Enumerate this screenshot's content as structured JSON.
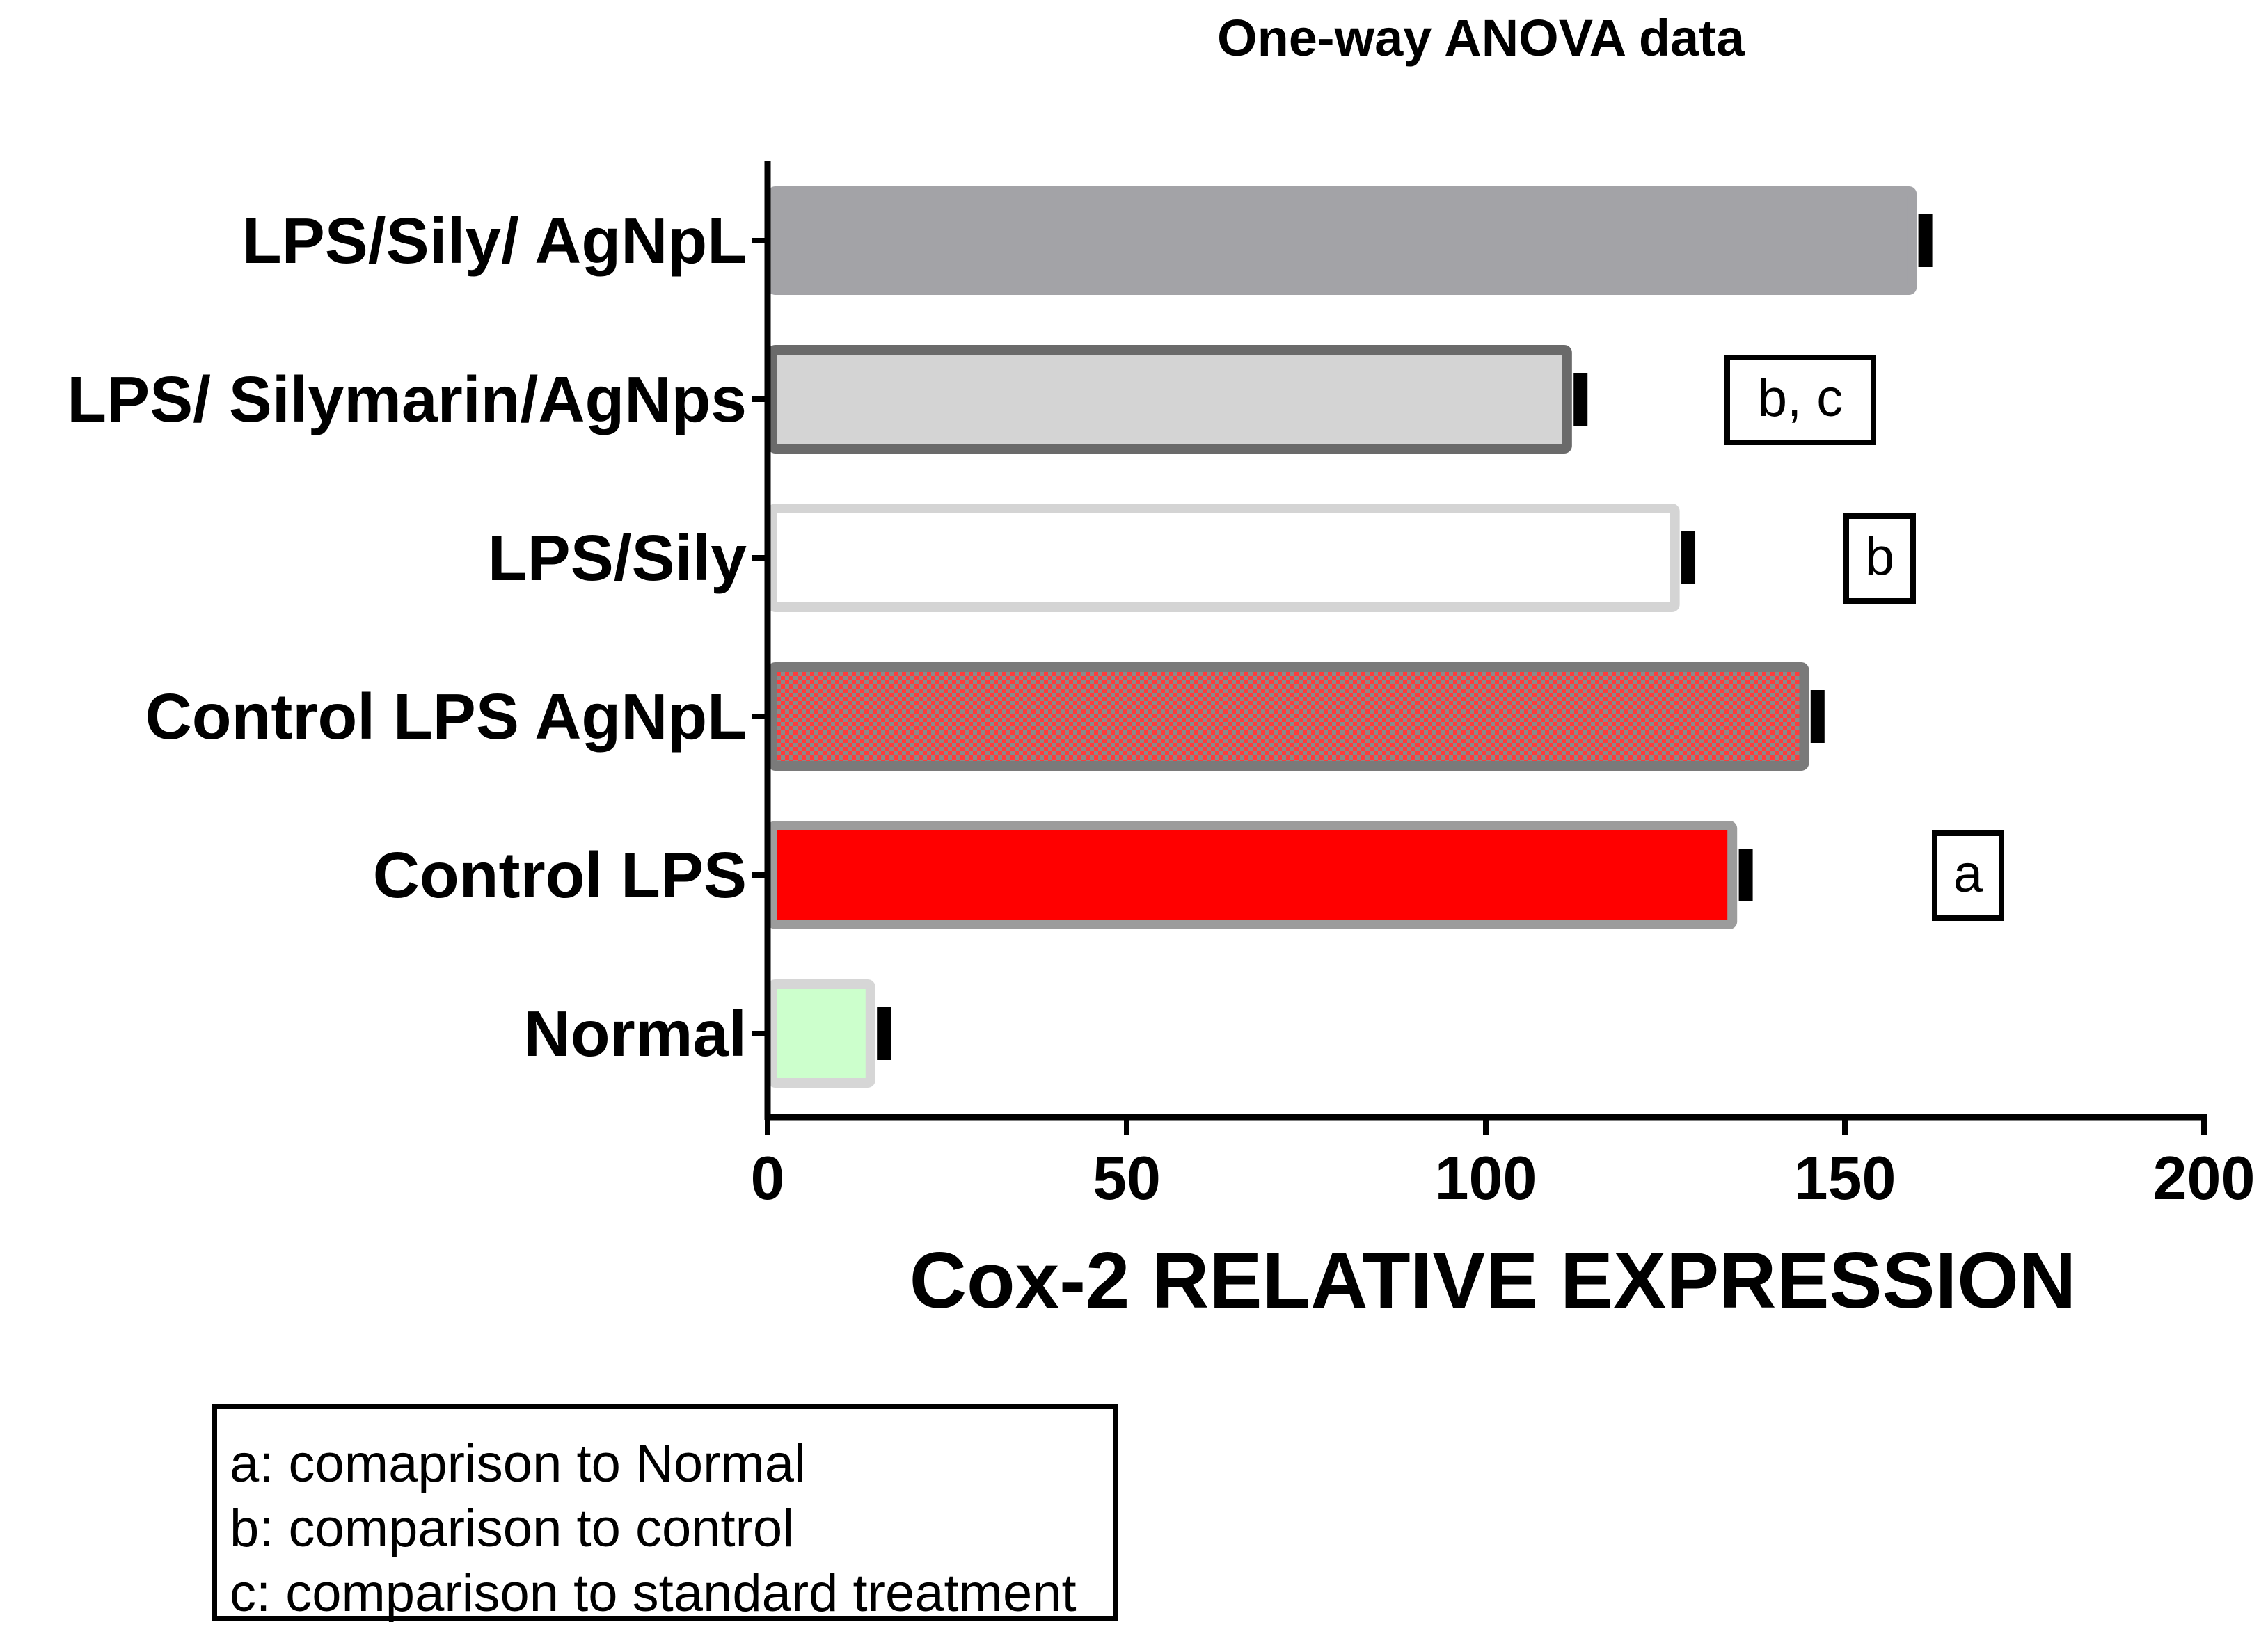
{
  "chart_data": {
    "type": "bar",
    "orientation": "horizontal",
    "title": "One-way ANOVA data",
    "xlabel": "Cox-2 RELATIVE EXPRESSION",
    "ylabel": "",
    "xlim": [
      0,
      200
    ],
    "xticks": [
      0,
      50,
      100,
      150,
      200
    ],
    "categories": [
      "LPS/Sily/ AgNpL",
      "LPS/ Silymarin/AgNps",
      "LPS/Sily",
      "Control LPS AgNpL",
      "Control LPS",
      "Normal"
    ],
    "values": [
      160,
      112,
      127,
      145,
      135,
      15
    ],
    "errors": [
      1.2,
      1.2,
      1.2,
      1.2,
      1.2,
      1.2
    ],
    "significance": [
      "",
      "b, c",
      "b",
      "",
      "a",
      ""
    ],
    "colors": {
      "fill": [
        "#a3a3a7",
        "#d4d4d4",
        "#ffffff",
        "#ff0000",
        "#ff0000",
        "#ccffcc"
      ],
      "border": [
        "#a3a3a7",
        "#6a6a6a",
        "#d4d4d4",
        "#7a7a7a",
        "#9c9c9c",
        "#d6d6d6"
      ],
      "pattern": [
        false,
        false,
        false,
        true,
        false,
        false
      ]
    },
    "legend": [
      "a: comaprison to Normal",
      "b: comparison to control",
      "c: comparison to standard treatment"
    ]
  }
}
